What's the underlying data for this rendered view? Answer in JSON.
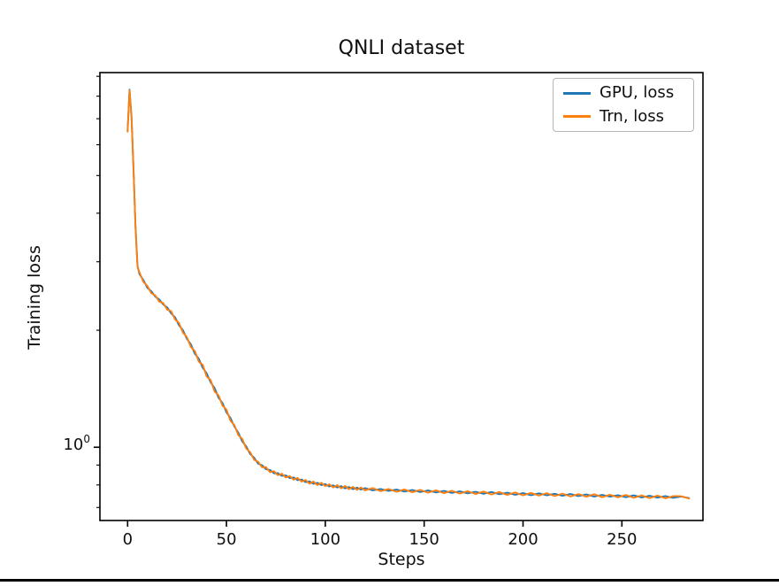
{
  "figure": {
    "background": "#ffffff",
    "bottom_rule_color": "#000000"
  },
  "chart_data": {
    "type": "line",
    "title": "QNLI dataset",
    "xlabel": "Steps",
    "ylabel": "Training loss",
    "yscale": "log",
    "grid": false,
    "legend_position": "upper right",
    "xlim": [
      -14,
      291
    ],
    "ylim": [
      0.648,
      9.2
    ],
    "xticks": [
      0,
      50,
      100,
      150,
      200,
      250
    ],
    "yticks_major": [
      1
    ],
    "ytick_major_label": {
      "base": "10",
      "exp": "0"
    },
    "yticks_minor": [
      0.7,
      0.8,
      0.9,
      2,
      3,
      4,
      5,
      6,
      7,
      8,
      9
    ],
    "x": [
      0,
      1,
      2,
      3,
      4,
      5,
      6,
      8,
      10,
      12,
      14,
      16,
      18,
      20,
      22,
      24,
      26,
      28,
      30,
      32,
      34,
      36,
      38,
      40,
      42,
      44,
      46,
      48,
      50,
      52,
      54,
      56,
      58,
      60,
      62,
      64,
      66,
      68,
      70,
      72,
      74,
      76,
      78,
      80,
      82,
      84,
      86,
      88,
      90,
      92,
      94,
      96,
      98,
      100,
      102,
      104,
      106,
      108,
      110,
      112,
      114,
      116,
      118,
      120,
      124,
      128,
      132,
      136,
      140,
      144,
      148,
      152,
      156,
      160,
      164,
      168,
      172,
      176,
      180,
      184,
      188,
      192,
      196,
      200,
      204,
      208,
      212,
      216,
      220,
      224,
      228,
      232,
      236,
      240,
      244,
      248,
      252,
      256,
      260,
      264,
      268,
      272,
      276,
      280,
      284
    ],
    "series": [
      {
        "name": "GPU, loss",
        "color": "#1f77b4",
        "values": [
          6.52,
          8.32,
          7.05,
          5.18,
          3.72,
          2.93,
          2.79,
          2.69,
          2.57,
          2.52,
          2.44,
          2.4,
          2.33,
          2.29,
          2.21,
          2.16,
          2.06,
          2.0,
          1.9,
          1.84,
          1.74,
          1.69,
          1.6,
          1.55,
          1.47,
          1.42,
          1.34,
          1.3,
          1.23,
          1.19,
          1.13,
          1.09,
          1.035,
          1.005,
          0.961,
          0.94,
          0.908,
          0.899,
          0.878,
          0.874,
          0.857,
          0.858,
          0.844,
          0.846,
          0.833,
          0.836,
          0.823,
          0.826,
          0.813,
          0.817,
          0.805,
          0.81,
          0.799,
          0.804,
          0.793,
          0.798,
          0.788,
          0.794,
          0.784,
          0.79,
          0.78,
          0.787,
          0.778,
          0.785,
          0.775,
          0.781,
          0.772,
          0.778,
          0.769,
          0.776,
          0.767,
          0.774,
          0.765,
          0.772,
          0.763,
          0.77,
          0.761,
          0.768,
          0.759,
          0.767,
          0.757,
          0.764,
          0.755,
          0.762,
          0.753,
          0.761,
          0.752,
          0.759,
          0.75,
          0.758,
          0.749,
          0.756,
          0.747,
          0.754,
          0.746,
          0.753,
          0.744,
          0.752,
          0.743,
          0.75,
          0.742,
          0.749,
          0.741,
          0.747,
          0.74
        ]
      },
      {
        "name": "Trn, loss",
        "color": "#ff7f0e",
        "values": [
          6.48,
          8.28,
          6.95,
          5.23,
          3.68,
          2.91,
          2.82,
          2.66,
          2.6,
          2.49,
          2.46,
          2.37,
          2.35,
          2.26,
          2.24,
          2.13,
          2.09,
          1.97,
          1.92,
          1.81,
          1.77,
          1.66,
          1.63,
          1.52,
          1.49,
          1.39,
          1.36,
          1.28,
          1.25,
          1.17,
          1.14,
          1.075,
          1.05,
          0.992,
          0.972,
          0.928,
          0.918,
          0.888,
          0.889,
          0.863,
          0.868,
          0.847,
          0.855,
          0.836,
          0.843,
          0.825,
          0.834,
          0.816,
          0.824,
          0.806,
          0.816,
          0.799,
          0.81,
          0.794,
          0.803,
          0.788,
          0.799,
          0.784,
          0.795,
          0.78,
          0.791,
          0.777,
          0.788,
          0.775,
          0.785,
          0.771,
          0.781,
          0.768,
          0.779,
          0.766,
          0.777,
          0.764,
          0.775,
          0.762,
          0.773,
          0.76,
          0.771,
          0.758,
          0.769,
          0.756,
          0.767,
          0.754,
          0.765,
          0.752,
          0.763,
          0.751,
          0.762,
          0.749,
          0.76,
          0.747,
          0.758,
          0.746,
          0.757,
          0.744,
          0.755,
          0.743,
          0.754,
          0.741,
          0.752,
          0.74,
          0.751,
          0.739,
          0.749,
          0.748,
          0.738
        ]
      }
    ]
  }
}
